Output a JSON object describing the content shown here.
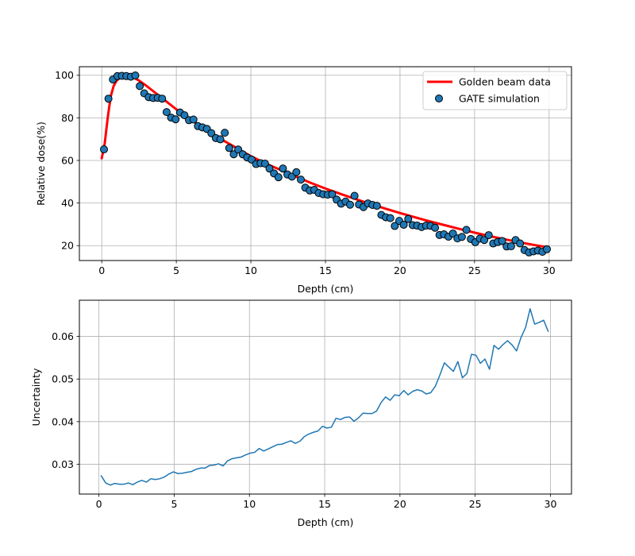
{
  "colors": {
    "golden": "#ff0000",
    "gate": "#1f77b4",
    "uncertainty": "#1f77b4",
    "grid": "#b0b0b0"
  },
  "chart_data": [
    {
      "type": "line",
      "xlabel": "Depth (cm)",
      "ylabel": "Relative dose(%)",
      "xlim": [
        -1.5,
        31.5
      ],
      "ylim": [
        13,
        104
      ],
      "xticks": [
        "0",
        "5",
        "10",
        "15",
        "20",
        "25",
        "30"
      ],
      "yticks": [
        "20",
        "40",
        "60",
        "80",
        "100"
      ],
      "grid": true,
      "legend_position": "upper-right",
      "series": [
        {
          "name": "Golden beam data",
          "kind": "line",
          "x": [
            0,
            0.2,
            0.4,
            0.6,
            0.8,
            1.0,
            1.3,
            1.6,
            2.0,
            2.5,
            3,
            4,
            5,
            6,
            7,
            8,
            9,
            10,
            11,
            12,
            13,
            14,
            15,
            16,
            17,
            18,
            19,
            20,
            21,
            22,
            23,
            24,
            25,
            26,
            27,
            28,
            29,
            30
          ],
          "y": [
            61,
            68,
            80,
            90,
            95,
            97.5,
            99.2,
            99.8,
            99.5,
            97.5,
            95,
            89.5,
            84,
            79,
            74.5,
            70,
            66,
            62,
            58.5,
            55.5,
            52.5,
            49.5,
            46.8,
            44.3,
            41.9,
            39.6,
            37.4,
            35.3,
            33.3,
            31.4,
            29.6,
            27.8,
            26.1,
            24.5,
            23,
            21.6,
            20.3,
            19.1
          ]
        },
        {
          "name": "GATE simulation",
          "kind": "scatter",
          "x": [
            0.15,
            0.45,
            0.75,
            1.05,
            1.35,
            1.65,
            1.95,
            2.25,
            2.55,
            2.85,
            3.15,
            3.45,
            3.75,
            4.05,
            4.35,
            4.65,
            4.95,
            5.25,
            5.55,
            5.85,
            6.15,
            6.45,
            6.75,
            7.05,
            7.35,
            7.65,
            7.95,
            8.25,
            8.55,
            8.85,
            9.15,
            9.45,
            9.75,
            10.05,
            10.35,
            10.65,
            10.95,
            11.25,
            11.55,
            11.85,
            12.15,
            12.45,
            12.75,
            13.05,
            13.35,
            13.65,
            13.95,
            14.25,
            14.55,
            14.85,
            15.15,
            15.45,
            15.75,
            16.05,
            16.35,
            16.65,
            16.95,
            17.25,
            17.55,
            17.85,
            18.15,
            18.45,
            18.75,
            19.05,
            19.35,
            19.65,
            19.95,
            20.25,
            20.55,
            20.85,
            21.15,
            21.45,
            21.75,
            22.05,
            22.35,
            22.65,
            22.95,
            23.25,
            23.55,
            23.85,
            24.15,
            24.45,
            24.75,
            25.05,
            25.35,
            25.65,
            25.95,
            26.25,
            26.55,
            26.85,
            27.15,
            27.45,
            27.75,
            28.05,
            28.35,
            28.65,
            28.95,
            29.25,
            29.55,
            29.85
          ],
          "y": [
            65.2,
            89.0,
            98.0,
            99.6,
            99.7,
            99.6,
            99.3,
            99.9,
            94.9,
            91.5,
            89.7,
            89.3,
            89.4,
            89.0,
            82.7,
            80.1,
            79.3,
            82.5,
            81.2,
            78.9,
            79.2,
            76.1,
            75.5,
            74.8,
            72.8,
            70.5,
            69.9,
            73.0,
            65.8,
            62.9,
            65.1,
            62.9,
            61.4,
            60.4,
            58.3,
            58.7,
            58.5,
            56.2,
            53.9,
            52.1,
            56.2,
            53.4,
            52.4,
            54.5,
            51.0,
            47.2,
            45.9,
            46.2,
            44.7,
            44.1,
            43.9,
            44.1,
            41.6,
            39.7,
            40.7,
            39.2,
            43.4,
            39.3,
            38.1,
            39.8,
            39.1,
            38.7,
            34.4,
            33.3,
            32.9,
            29.2,
            31.6,
            29.8,
            32.5,
            29.6,
            29.4,
            28.7,
            29.4,
            29.3,
            28.4,
            25.0,
            25.3,
            24.2,
            25.7,
            23.4,
            24.1,
            27.4,
            23.1,
            21.6,
            23.3,
            22.6,
            24.9,
            21.0,
            21.7,
            22.2,
            19.6,
            19.7,
            22.6,
            21.0,
            17.9,
            16.8,
            17.3,
            17.7,
            17.1,
            18.3
          ]
        }
      ]
    },
    {
      "type": "line",
      "xlabel": "Depth (cm)",
      "ylabel": "Uncertainty",
      "xlim": [
        -1.3,
        31.4
      ],
      "ylim": [
        0.023,
        0.0685
      ],
      "xticks": [
        "0",
        "5",
        "10",
        "15",
        "20",
        "25",
        "30"
      ],
      "yticks": [
        "0.03",
        "0.04",
        "0.05",
        "0.06"
      ],
      "grid": true,
      "series": [
        {
          "kind": "line",
          "x": [
            0.15,
            0.45,
            0.75,
            1.05,
            1.35,
            1.65,
            1.95,
            2.25,
            2.55,
            2.85,
            3.15,
            3.45,
            3.75,
            4.05,
            4.35,
            4.65,
            4.95,
            5.25,
            5.55,
            5.85,
            6.15,
            6.45,
            6.75,
            7.05,
            7.35,
            7.65,
            7.95,
            8.25,
            8.55,
            8.85,
            9.15,
            9.45,
            9.75,
            10.05,
            10.35,
            10.65,
            10.95,
            11.25,
            11.55,
            11.85,
            12.15,
            12.45,
            12.75,
            13.05,
            13.35,
            13.65,
            13.95,
            14.25,
            14.55,
            14.85,
            15.15,
            15.45,
            15.75,
            16.05,
            16.35,
            16.65,
            16.95,
            17.25,
            17.55,
            17.85,
            18.15,
            18.45,
            18.75,
            19.05,
            19.35,
            19.65,
            19.95,
            20.25,
            20.55,
            20.85,
            21.15,
            21.45,
            21.75,
            22.05,
            22.35,
            22.65,
            22.95,
            23.25,
            23.55,
            23.85,
            24.15,
            24.45,
            24.75,
            25.05,
            25.35,
            25.65,
            25.95,
            26.25,
            26.55,
            26.85,
            27.15,
            27.45,
            27.75,
            28.05,
            28.35,
            28.65,
            28.95,
            29.25,
            29.55,
            29.85
          ],
          "y": [
            0.0273,
            0.0256,
            0.0251,
            0.0255,
            0.0253,
            0.0253,
            0.0256,
            0.0252,
            0.0258,
            0.0262,
            0.0258,
            0.0266,
            0.0264,
            0.0266,
            0.027,
            0.0277,
            0.0282,
            0.0278,
            0.0279,
            0.0281,
            0.0283,
            0.0288,
            0.0291,
            0.0291,
            0.0297,
            0.0298,
            0.0301,
            0.0296,
            0.0308,
            0.0313,
            0.0315,
            0.0317,
            0.0322,
            0.0326,
            0.0328,
            0.0337,
            0.0331,
            0.0336,
            0.0341,
            0.0346,
            0.0347,
            0.0351,
            0.0355,
            0.0349,
            0.0354,
            0.0365,
            0.0371,
            0.0375,
            0.0378,
            0.0389,
            0.0385,
            0.0387,
            0.0408,
            0.0405,
            0.041,
            0.0411,
            0.0401,
            0.0409,
            0.042,
            0.0419,
            0.0419,
            0.0425,
            0.0445,
            0.0458,
            0.045,
            0.0463,
            0.0461,
            0.0473,
            0.0463,
            0.0471,
            0.0475,
            0.0472,
            0.0465,
            0.0468,
            0.0483,
            0.0509,
            0.0538,
            0.0528,
            0.0518,
            0.0541,
            0.0503,
            0.0513,
            0.0558,
            0.0556,
            0.0537,
            0.0547,
            0.0523,
            0.0579,
            0.057,
            0.0581,
            0.059,
            0.058,
            0.0566,
            0.0598,
            0.0621,
            0.0665,
            0.0629,
            0.0633,
            0.0638,
            0.0612
          ]
        }
      ]
    }
  ]
}
